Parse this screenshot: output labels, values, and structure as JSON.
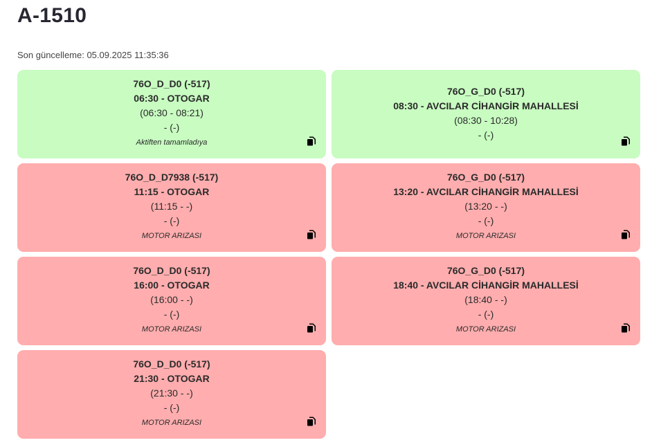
{
  "page": {
    "title": "A-1510",
    "last_update": "Son güncelleme: 05.09.2025 11:35:36"
  },
  "cards": [
    {
      "status": "ok",
      "line": "76O_D_D0 (-517)",
      "trip": "06:30 - OTOGAR",
      "times": "(06:30 - 08:21)",
      "extra": "- (-)",
      "note": "Aktiften tamamladıya"
    },
    {
      "status": "ok",
      "line": "76O_G_D0 (-517)",
      "trip": "08:30 - AVCILAR CİHANGİR MAHALLESİ",
      "times": "(08:30 - 10:28)",
      "extra": "- (-)",
      "note": ""
    },
    {
      "status": "fail",
      "line": "76O_D_D7938 (-517)",
      "trip": "11:15 - OTOGAR",
      "times": "(11:15 - -)",
      "extra": "- (-)",
      "note": "MOTOR ARIZASI"
    },
    {
      "status": "fail",
      "line": "76O_G_D0 (-517)",
      "trip": "13:20 - AVCILAR CİHANGİR MAHALLESİ",
      "times": "(13:20 - -)",
      "extra": "- (-)",
      "note": "MOTOR ARIZASI"
    },
    {
      "status": "fail",
      "line": "76O_D_D0 (-517)",
      "trip": "16:00 - OTOGAR",
      "times": "(16:00 - -)",
      "extra": "- (-)",
      "note": "MOTOR ARIZASI"
    },
    {
      "status": "fail",
      "line": "76O_G_D0 (-517)",
      "trip": "18:40 - AVCILAR CİHANGİR MAHALLESİ",
      "times": "(18:40 - -)",
      "extra": "- (-)",
      "note": "MOTOR ARIZASI"
    },
    {
      "status": "fail",
      "line": "76O_D_D0 (-517)",
      "trip": "21:30 - OTOGAR",
      "times": "(21:30 - -)",
      "extra": "- (-)",
      "note": "MOTOR ARIZASI"
    }
  ],
  "icons": {
    "copy": "copy-icon"
  },
  "colors": {
    "ok": "#c8fcc1",
    "fail": "#ffadae"
  }
}
